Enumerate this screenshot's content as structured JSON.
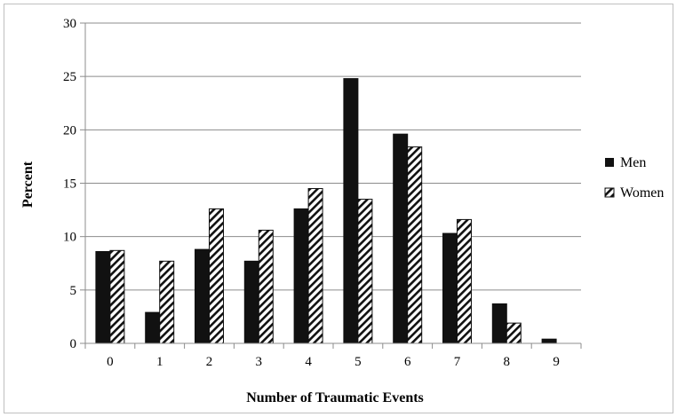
{
  "chart_data": {
    "type": "bar",
    "title": "",
    "xlabel": "Number of Traumatic Events",
    "ylabel": "Percent",
    "categories": [
      "0",
      "1",
      "2",
      "3",
      "4",
      "5",
      "6",
      "7",
      "8",
      "9"
    ],
    "series": [
      {
        "name": "Men",
        "values": [
          8.6,
          2.9,
          8.8,
          7.7,
          12.6,
          24.8,
          19.6,
          10.3,
          3.7,
          0.4
        ],
        "fill": "solid",
        "color": "#111111"
      },
      {
        "name": "Women",
        "values": [
          8.7,
          7.7,
          12.6,
          10.6,
          14.5,
          13.5,
          18.4,
          11.6,
          1.9,
          0
        ],
        "fill": "hatched",
        "color": "#111111"
      }
    ],
    "ylim": [
      0,
      30
    ],
    "yticks": [
      0,
      5,
      10,
      15,
      20,
      25,
      30
    ],
    "grid": true,
    "legend": "right"
  }
}
